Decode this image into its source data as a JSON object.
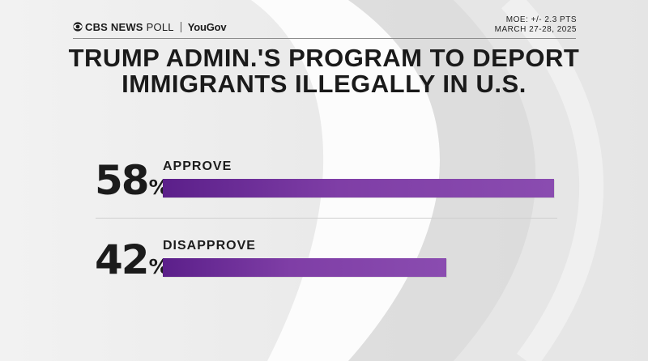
{
  "header": {
    "brand_cbs": "CBS NEWS",
    "brand_poll": "POLL",
    "brand_partner": "YouGov",
    "moe": "MOE: +/- 2.3 PTS",
    "dates": "MARCH 27-28, 2025"
  },
  "colors": {
    "bar_start": "#5b1f8a",
    "bar_end": "#8a4cb0",
    "text": "#1b1b1b"
  },
  "chart_data": {
    "type": "bar",
    "title": "TRUMP ADMIN.'S PROGRAM TO DEPORT IMMIGRANTS ILLEGALLY IN U.S.",
    "categories": [
      "APPROVE",
      "DISAPPROVE"
    ],
    "values": [
      58,
      42
    ],
    "value_labels": [
      "58",
      "42"
    ],
    "unit": "%",
    "orientation": "horizontal",
    "xlim": [
      0,
      58
    ],
    "grid": false,
    "legend": "none"
  }
}
